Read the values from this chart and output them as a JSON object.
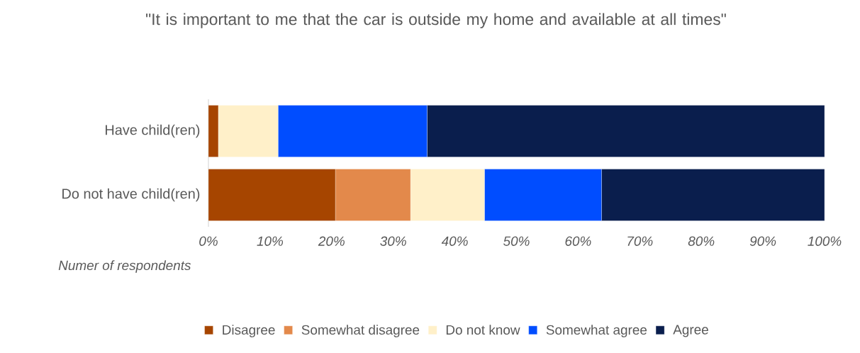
{
  "chart_data": {
    "type": "bar",
    "orientation": "horizontal",
    "stacked": true,
    "title": "\"It is important to me that the car is outside my home and available at all times\"",
    "xlabel": "Numer of respondents",
    "categories": [
      "Have child(ren)",
      "Do not have child(ren)"
    ],
    "series": [
      {
        "name": "Disagree",
        "color": "#a64500",
        "values": [
          1.6,
          20.6
        ]
      },
      {
        "name": "Somewhat disagree",
        "color": "#e3894b",
        "values": [
          0,
          12.2
        ]
      },
      {
        "name": "Do not know",
        "color": "#fff0c9",
        "values": [
          9.7,
          12.0
        ]
      },
      {
        "name": "Somewhat agree",
        "color": "#004dff",
        "values": [
          24.2,
          19.0
        ]
      },
      {
        "name": "Agree",
        "color": "#0a1e4d",
        "values": [
          64.5,
          36.2
        ]
      }
    ],
    "xlim": [
      0,
      100
    ],
    "xticks": [
      {
        "value": 0,
        "label": "0%"
      },
      {
        "value": 10,
        "label": "10%"
      },
      {
        "value": 20,
        "label": "20%"
      },
      {
        "value": 30,
        "label": "30%"
      },
      {
        "value": 40,
        "label": "40%"
      },
      {
        "value": 50,
        "label": "50%"
      },
      {
        "value": 60,
        "label": "60%"
      },
      {
        "value": 70,
        "label": "70%"
      },
      {
        "value": 80,
        "label": "80%"
      },
      {
        "value": 90,
        "label": "90%"
      },
      {
        "value": 100,
        "label": "100%"
      }
    ],
    "legend": "bottom"
  }
}
